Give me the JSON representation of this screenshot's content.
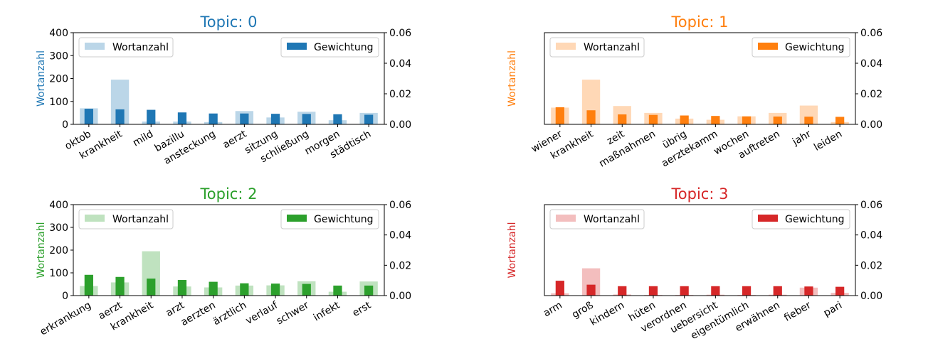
{
  "chart_data": [
    {
      "type": "bar",
      "title": "Topic: 0",
      "color": "#1f77b4",
      "categories": [
        "oktob",
        "krankheit",
        "mild",
        "bazillu",
        "ansteckung",
        "aerzt",
        "sitzung",
        "schließung",
        "morgen",
        "städtisch"
      ],
      "ylabel": "Wortanzahl",
      "ylim": [
        0,
        400
      ],
      "yticks": [
        "0",
        "100",
        "200",
        "300",
        "400"
      ],
      "y2lim": [
        0,
        0.06
      ],
      "y2ticks": [
        "0.00",
        "0.02",
        "0.04",
        "0.06"
      ],
      "series": [
        {
          "name": "Wortanzahl",
          "axis": "left",
          "values": [
            70,
            195,
            12,
            12,
            10,
            58,
            30,
            55,
            18,
            50
          ]
        },
        {
          "name": "Gewichtung",
          "axis": "right",
          "values": [
            0.0102,
            0.0098,
            0.0095,
            0.0078,
            0.0071,
            0.0071,
            0.0069,
            0.0068,
            0.0066,
            0.0063
          ]
        }
      ]
    },
    {
      "type": "bar",
      "title": "Topic: 1",
      "color": "#ff7f0e",
      "categories": [
        "wiener",
        "krankheit",
        "zeit",
        "maßnahmen",
        "übrig",
        "aerztekamm",
        "wochen",
        "auftreten",
        "jahr",
        "leiden"
      ],
      "ylabel": "Wortanzahl",
      "ylim": [
        0,
        400
      ],
      "yticks": [],
      "y2lim": [
        0,
        0.06
      ],
      "y2ticks": [
        "0.00",
        "0.02",
        "0.04",
        "0.06"
      ],
      "series": [
        {
          "name": "Wortanzahl",
          "axis": "left",
          "values": [
            73,
            195,
            80,
            50,
            25,
            20,
            35,
            50,
            82,
            10
          ]
        },
        {
          "name": "Gewichtung",
          "axis": "right",
          "values": [
            0.0112,
            0.0092,
            0.0065,
            0.0062,
            0.0058,
            0.0055,
            0.0052,
            0.0051,
            0.005,
            0.0049
          ]
        }
      ]
    },
    {
      "type": "bar",
      "title": "Topic: 2",
      "color": "#2ca02c",
      "categories": [
        "erkrankung",
        "aerzt",
        "krankheit",
        "arzt",
        "aerzten",
        "ärztlich",
        "verlauf",
        "schwer",
        "infekt",
        "erst"
      ],
      "ylabel": "Wortanzahl",
      "ylim": [
        0,
        400
      ],
      "yticks": [
        "0",
        "100",
        "200",
        "300",
        "400"
      ],
      "y2lim": [
        0,
        0.06
      ],
      "y2ticks": [
        "0.00",
        "0.02",
        "0.04",
        "0.06"
      ],
      "series": [
        {
          "name": "Wortanzahl",
          "axis": "left",
          "values": [
            42,
            58,
            195,
            40,
            36,
            44,
            45,
            63,
            17,
            62
          ]
        },
        {
          "name": "Gewichtung",
          "axis": "right",
          "values": [
            0.0137,
            0.0123,
            0.0112,
            0.0103,
            0.0091,
            0.0081,
            0.0079,
            0.0077,
            0.0066,
            0.0066
          ]
        }
      ]
    },
    {
      "type": "bar",
      "title": "Topic: 3",
      "color": "#d62728",
      "categories": [
        "arm",
        "groß",
        "kindern",
        "hüten",
        "verordnen",
        "uebersicht",
        "eigentümlich",
        "erwähnen",
        "fieber",
        "pari"
      ],
      "ylabel": "Wortanzahl",
      "ylim": [
        0,
        400
      ],
      "yticks": [],
      "y2lim": [
        0,
        0.06
      ],
      "y2ticks": [
        "0.00",
        "0.02",
        "0.04",
        "0.06"
      ],
      "series": [
        {
          "name": "Wortanzahl",
          "axis": "left",
          "values": [
            10,
            120,
            5,
            3,
            3,
            4,
            3,
            4,
            35,
            12
          ]
        },
        {
          "name": "Gewichtung",
          "axis": "right",
          "values": [
            0.0098,
            0.0072,
            0.0062,
            0.0062,
            0.0062,
            0.0062,
            0.0062,
            0.0062,
            0.006,
            0.0058
          ]
        }
      ]
    }
  ]
}
